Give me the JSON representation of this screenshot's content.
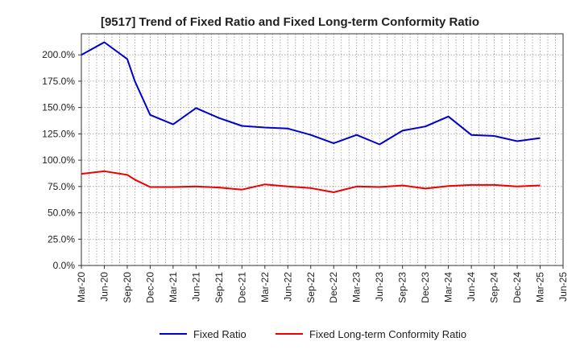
{
  "chart_data": {
    "type": "line",
    "title": "[9517]  Trend of Fixed Ratio and Fixed Long-term Conformity Ratio",
    "xlabel": "",
    "ylabel": "",
    "x": [
      "Mar-20",
      "Jun-20",
      "Sep-20",
      "Oct-20",
      "Dec-20",
      "Mar-21",
      "Jun-21",
      "Sep-21",
      "Dec-21",
      "Mar-22",
      "Jun-22",
      "Sep-22",
      "Dec-22",
      "Mar-23",
      "Jun-23",
      "Sep-23",
      "Dec-23",
      "Mar-24",
      "Jun-24",
      "Sep-24",
      "Dec-24",
      "Mar-25"
    ],
    "x_months": [
      0,
      3,
      6,
      7,
      9,
      12,
      15,
      18,
      21,
      24,
      27,
      30,
      33,
      36,
      39,
      42,
      45,
      48,
      51,
      54,
      57,
      60
    ],
    "x_ticks": [
      "Mar-20",
      "Jun-20",
      "Sep-20",
      "Dec-20",
      "Mar-21",
      "Jun-21",
      "Sep-21",
      "Dec-21",
      "Mar-22",
      "Jun-22",
      "Sep-22",
      "Dec-22",
      "Mar-23",
      "Jun-23",
      "Sep-23",
      "Dec-23",
      "Mar-24",
      "Jun-24",
      "Sep-24",
      "Dec-24",
      "Mar-25",
      "Jun-25"
    ],
    "y_ticks": [
      "0.0%",
      "25.0%",
      "50.0%",
      "75.0%",
      "100.0%",
      "125.0%",
      "150.0%",
      "175.0%",
      "200.0%"
    ],
    "ylim": [
      0,
      220
    ],
    "grid": true,
    "legend_position": "bottom",
    "series": [
      {
        "name": "Fixed Ratio",
        "color": "#0000cc",
        "values": [
          200.0,
          212.0,
          196.0,
          175.0,
          143.0,
          134.0,
          149.5,
          140.0,
          132.5,
          131.0,
          130.0,
          124.0,
          116.0,
          124.0,
          115.0,
          128.0,
          132.0,
          141.5,
          124.0,
          123.0,
          118.0,
          121.0
        ]
      },
      {
        "name": "Fixed Long-term Conformity Ratio",
        "color": "#ee0000",
        "values": [
          87.0,
          89.5,
          86.0,
          81.5,
          74.5,
          74.5,
          75.0,
          74.0,
          72.0,
          77.0,
          75.0,
          73.5,
          69.5,
          75.0,
          74.5,
          76.0,
          73.0,
          75.5,
          76.5,
          76.5,
          75.0,
          76.0
        ]
      }
    ]
  }
}
